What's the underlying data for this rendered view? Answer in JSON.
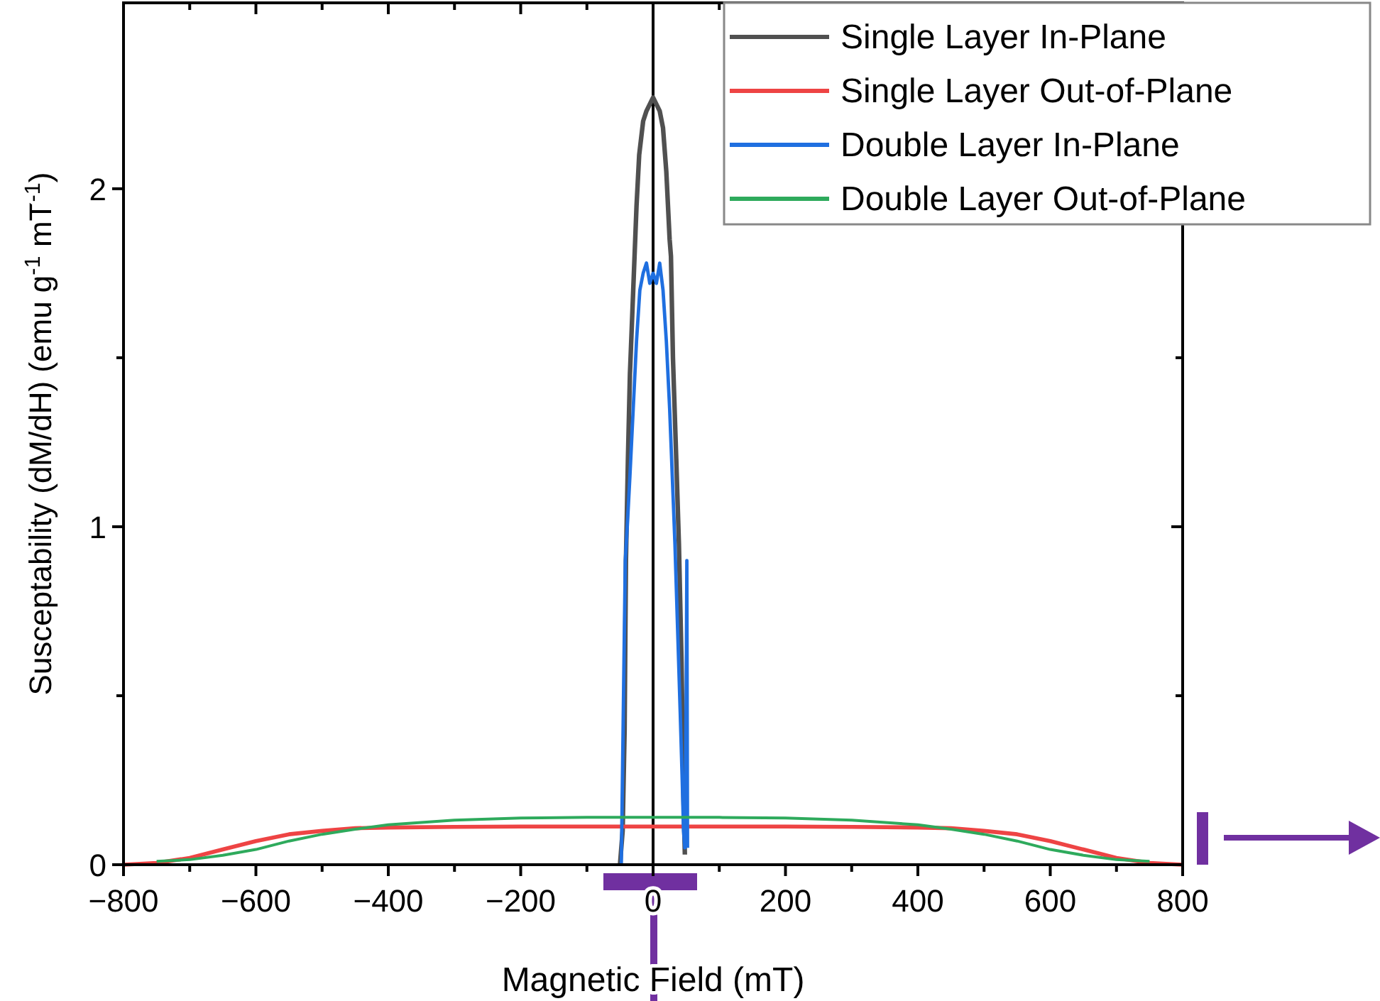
{
  "chart_data": {
    "type": "line",
    "xlabel": "Magnetic Field (mT)",
    "ylabel": "Susceptability (dM/dH) (emu g$^{-1}$ mT$^{-1}$)",
    "xlim": [
      -800,
      800
    ],
    "ylim": [
      0,
      2.55
    ],
    "xticks": [
      -800,
      {
        "value": -700,
        "label": null
      },
      -600,
      {
        "value": -500,
        "label": null
      },
      -400,
      {
        "value": -300,
        "label": null
      },
      -200,
      {
        "value": -100,
        "label": null
      },
      0,
      {
        "value": 100,
        "label": null
      },
      200,
      {
        "value": 300,
        "label": null
      },
      400,
      {
        "value": 500,
        "label": null
      },
      600,
      {
        "value": 700,
        "label": null
      },
      800
    ],
    "yticks": [
      0,
      {
        "value": 0.5,
        "label": null
      },
      1,
      {
        "value": 1.5,
        "label": null
      },
      2
    ],
    "legend": "top right",
    "grid": false,
    "ref_lines": [
      {
        "axis": "x",
        "value": 0,
        "color": "#000000"
      }
    ],
    "series": [
      {
        "name": "Single Layer In-Plane",
        "color": "#505050",
        "x": [
          -50,
          -46,
          -43,
          -41,
          -38,
          -35,
          -30,
          -25,
          -21,
          -15,
          -10,
          -5,
          0,
          5,
          10,
          15,
          20,
          25,
          27,
          30,
          35,
          39,
          43,
          46,
          48
        ],
        "values": [
          0,
          0.1,
          0.4,
          0.9,
          1.2,
          1.45,
          1.7,
          1.95,
          2.1,
          2.2,
          2.23,
          2.25,
          2.27,
          2.25,
          2.23,
          2.18,
          2.05,
          1.85,
          1.8,
          1.5,
          1.2,
          0.95,
          0.6,
          0.2,
          0.03
        ]
      },
      {
        "name": "Single Layer Out-of-Plane",
        "color": "#ee4444",
        "x": [
          -800,
          -750,
          -700,
          -650,
          -600,
          -550,
          -500,
          -450,
          -400,
          -300,
          -200,
          -100,
          0,
          100,
          200,
          300,
          400,
          450,
          500,
          550,
          600,
          650,
          700,
          750,
          800
        ],
        "values": [
          0,
          0.005,
          0.02,
          0.045,
          0.07,
          0.09,
          0.1,
          0.108,
          0.11,
          0.112,
          0.113,
          0.113,
          0.113,
          0.113,
          0.113,
          0.112,
          0.11,
          0.108,
          0.1,
          0.09,
          0.07,
          0.045,
          0.02,
          0.005,
          0
        ]
      },
      {
        "name": "Double Layer In-Plane",
        "color": "#1f6fe0",
        "x": [
          -48,
          -46,
          -44,
          -42,
          -39,
          -35,
          -30,
          -25,
          -20,
          -15,
          -10,
          -5,
          0,
          5,
          10,
          15,
          20,
          25,
          30,
          33,
          37,
          41,
          44,
          46,
          48,
          50,
          51,
          52
        ],
        "values": [
          0,
          0.3,
          0.6,
          0.9,
          1.0,
          1.15,
          1.35,
          1.55,
          1.7,
          1.75,
          1.78,
          1.72,
          1.75,
          1.72,
          1.78,
          1.7,
          1.55,
          1.35,
          1.1,
          0.95,
          0.7,
          0.45,
          0.25,
          0.1,
          0.05,
          0.5,
          0.9,
          0.05
        ]
      },
      {
        "name": "Double Layer Out-of-Plane",
        "color": "#2eaa5c",
        "x": [
          -750,
          -700,
          -650,
          -600,
          -550,
          -500,
          -450,
          -400,
          -300,
          -200,
          -100,
          0,
          100,
          200,
          300,
          400,
          450,
          500,
          550,
          600,
          650,
          700,
          750
        ],
        "values": [
          0.01,
          0.015,
          0.028,
          0.045,
          0.07,
          0.09,
          0.105,
          0.118,
          0.132,
          0.138,
          0.14,
          0.14,
          0.14,
          0.138,
          0.132,
          0.118,
          0.105,
          0.09,
          0.07,
          0.045,
          0.028,
          0.015,
          0.01
        ]
      }
    ]
  }
}
